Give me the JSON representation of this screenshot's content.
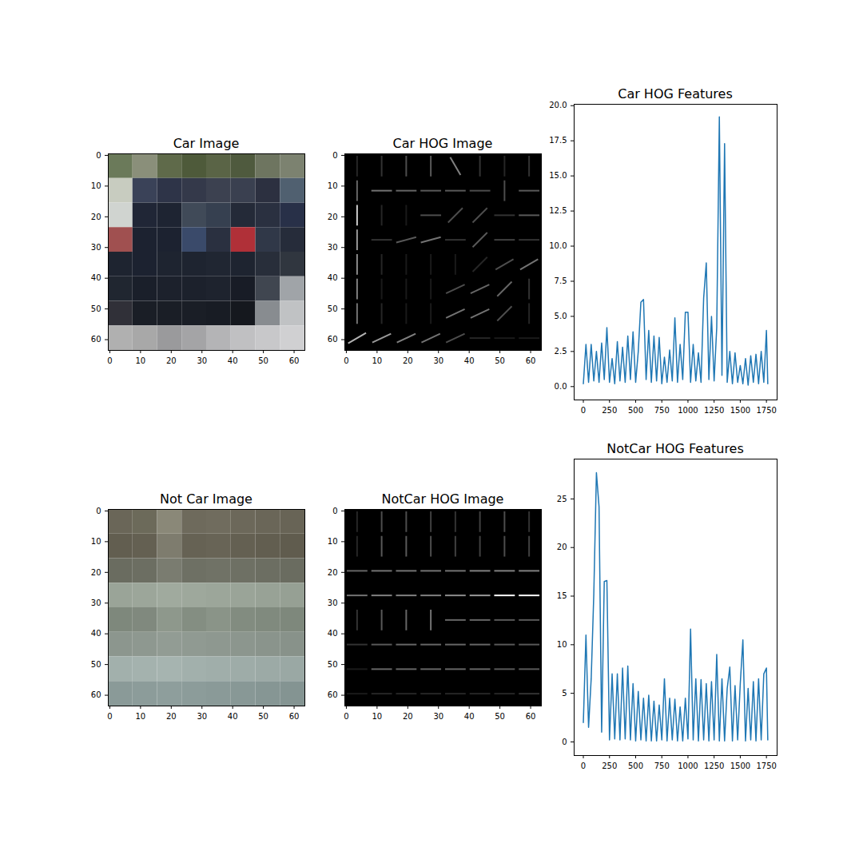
{
  "chart_data": [
    {
      "type": "image",
      "title": "Car Image",
      "xlim": [
        -0.5,
        63.5
      ],
      "ylim": [
        63.5,
        -0.5
      ],
      "xticks": [
        0,
        10,
        20,
        30,
        40,
        50,
        60
      ],
      "yticks": [
        0,
        10,
        20,
        30,
        40,
        50,
        60
      ],
      "cells": [
        [
          "#6b7a5a",
          "#8a8f7a",
          "#5f6a4a",
          "#4e5a3a",
          "#5a6446",
          "#4f5a3e",
          "#6e7560",
          "#7c8270"
        ],
        [
          "#c8ccc0",
          "#3a4258",
          "#2e3448",
          "#34394a",
          "#3c4150",
          "#3a4050",
          "#2c3040",
          "#506070"
        ],
        [
          "#d0d4d0",
          "#202636",
          "#1e2432",
          "#404a58",
          "#364050",
          "#242a38",
          "#2a3040",
          "#283048"
        ],
        [
          "#a05050",
          "#1c2230",
          "#1c2230",
          "#3a4a6a",
          "#2a3040",
          "#b03038",
          "#303848",
          "#262c3a"
        ],
        [
          "#1e2430",
          "#1c2230",
          "#1e2430",
          "#1e2430",
          "#202632",
          "#1e2430",
          "#282e3a",
          "#30363f"
        ],
        [
          "#202630",
          "#1a1f2a",
          "#1c212c",
          "#1c212c",
          "#1e232e",
          "#181c26",
          "#404650",
          "#a0a4a8"
        ],
        [
          "#303038",
          "#1a1e26",
          "#1a1e26",
          "#1a1e26",
          "#181c24",
          "#15181e",
          "#888c90",
          "#c0c2c4"
        ],
        [
          "#b0b0b0",
          "#a8a8a8",
          "#9a9a9c",
          "#a4a4a6",
          "#b4b4b6",
          "#c0c0c2",
          "#c8c8ca",
          "#d0d0d2"
        ]
      ]
    },
    {
      "type": "hog_image",
      "title": "Car HOG Image",
      "xlim": [
        -0.5,
        63.5
      ],
      "ylim": [
        63.5,
        -0.5
      ],
      "xticks": [
        0,
        10,
        20,
        30,
        40,
        50,
        60
      ],
      "yticks": [
        0,
        10,
        20,
        30,
        40,
        50,
        60
      ],
      "strength": [
        [
          0.15,
          0.2,
          0.3,
          0.35,
          0.5,
          0.2,
          0.15,
          0.2
        ],
        [
          0.4,
          0.45,
          0.4,
          0.35,
          0.35,
          0.3,
          0.3,
          0.35
        ],
        [
          0.8,
          0.15,
          0.1,
          0.3,
          0.3,
          0.3,
          0.2,
          0.35
        ],
        [
          0.6,
          0.2,
          0.35,
          0.45,
          0.2,
          0.35,
          0.25,
          0.2
        ],
        [
          0.55,
          0.15,
          0.1,
          0.1,
          0.1,
          0.15,
          0.3,
          0.45
        ],
        [
          0.5,
          0.1,
          0.1,
          0.1,
          0.3,
          0.4,
          0.4,
          0.2
        ],
        [
          0.45,
          0.15,
          0.1,
          0.1,
          0.45,
          0.45,
          0.3,
          0.15
        ],
        [
          0.7,
          0.6,
          0.5,
          0.45,
          0.3,
          0.15,
          0.1,
          0.1
        ]
      ],
      "angle": [
        [
          90,
          90,
          90,
          90,
          -60,
          90,
          90,
          90
        ],
        [
          90,
          0,
          0,
          0,
          0,
          0,
          90,
          0
        ],
        [
          90,
          90,
          90,
          0,
          45,
          45,
          0,
          0
        ],
        [
          90,
          0,
          15,
          15,
          0,
          45,
          0,
          0
        ],
        [
          90,
          90,
          90,
          90,
          90,
          45,
          30,
          30
        ],
        [
          90,
          90,
          90,
          90,
          25,
          25,
          45,
          90
        ],
        [
          90,
          90,
          90,
          90,
          25,
          25,
          45,
          90
        ],
        [
          30,
          25,
          25,
          25,
          25,
          0,
          0,
          0
        ]
      ]
    },
    {
      "type": "line",
      "title": "Car HOG Features",
      "color": "#1f77b4",
      "xlim": [
        -88,
        1852
      ],
      "ylim": [
        -0.95,
        20.1
      ],
      "xticks": [
        0,
        250,
        500,
        750,
        1000,
        1250,
        1500,
        1750
      ],
      "yticks": [
        {
          "value": 0,
          "label": "0.0"
        },
        {
          "value": 2.5,
          "label": "2.5"
        },
        {
          "value": 5,
          "label": "5.0"
        },
        {
          "value": 7.5,
          "label": "7.5"
        },
        {
          "value": 10,
          "label": "10.0"
        },
        {
          "value": 12.5,
          "label": "12.5"
        },
        {
          "value": 15,
          "label": "15.0"
        },
        {
          "value": 17.5,
          "label": "17.5"
        },
        {
          "value": 20,
          "label": "20.0"
        }
      ],
      "x": [
        0,
        25,
        50,
        75,
        100,
        125,
        150,
        175,
        200,
        225,
        250,
        275,
        300,
        325,
        350,
        375,
        400,
        425,
        450,
        475,
        500,
        525,
        550,
        575,
        600,
        625,
        650,
        675,
        700,
        725,
        750,
        775,
        800,
        825,
        850,
        875,
        900,
        925,
        950,
        975,
        1000,
        1025,
        1050,
        1075,
        1100,
        1125,
        1150,
        1175,
        1200,
        1225,
        1250,
        1275,
        1300,
        1325,
        1350,
        1375,
        1400,
        1425,
        1450,
        1475,
        1500,
        1525,
        1550,
        1575,
        1600,
        1625,
        1650,
        1675,
        1700,
        1725,
        1750,
        1763
      ],
      "values": [
        0.2,
        3.0,
        0.3,
        3.0,
        0.4,
        2.5,
        0.3,
        3.1,
        0.5,
        4.2,
        0.3,
        2.0,
        0.2,
        3.2,
        0.4,
        2.8,
        0.3,
        3.6,
        0.5,
        3.9,
        0.3,
        2.5,
        6.0,
        6.2,
        0.5,
        4.0,
        0.3,
        3.6,
        0.4,
        3.5,
        0.2,
        2.1,
        0.3,
        2.6,
        0.4,
        4.9,
        0.3,
        3.0,
        0.5,
        5.3,
        5.3,
        0.3,
        3.0,
        0.4,
        2.4,
        0.3,
        6.3,
        8.8,
        0.5,
        5.0,
        0.4,
        4.2,
        19.2,
        0.8,
        17.3,
        0.3,
        2.5,
        0.2,
        2.4,
        0.3,
        1.5,
        0.2,
        2.0,
        0.1,
        2.2,
        0.3,
        2.3,
        0.2,
        2.5,
        0.3,
        4.0,
        0.2
      ]
    },
    {
      "type": "image",
      "title": "Not Car Image",
      "xlim": [
        -0.5,
        63.5
      ],
      "ylim": [
        63.5,
        -0.5
      ],
      "xticks": [
        0,
        10,
        20,
        30,
        40,
        50,
        60
      ],
      "yticks": [
        0,
        10,
        20,
        30,
        40,
        50,
        60
      ],
      "cells": [
        [
          "#6a6658",
          "#6c6a5a",
          "#8a8878",
          "#6e6a5c",
          "#706c5e",
          "#6c685a",
          "#6a6658",
          "#686456"
        ],
        [
          "#625e50",
          "#646052",
          "#7e7c6e",
          "#666254",
          "#686456",
          "#646052",
          "#625e50",
          "#605c4e"
        ],
        [
          "#6a6c60",
          "#6c6e62",
          "#7a7c70",
          "#6e7064",
          "#707266",
          "#6e7064",
          "#6c6e62",
          "#6a6c60"
        ],
        [
          "#9aa498",
          "#9ca69a",
          "#a0aa9e",
          "#9ea89c",
          "#9ca69a",
          "#9aa498",
          "#98a296",
          "#96a094"
        ],
        [
          "#7e887c",
          "#80897e",
          "#8e988c",
          "#848e82",
          "#8a9488",
          "#828c80",
          "#808a7e",
          "#7e887c"
        ],
        [
          "#8c968e",
          "#8e9890",
          "#929c94",
          "#909a92",
          "#8e9890",
          "#8c968e",
          "#8a948c",
          "#88928a"
        ],
        [
          "#a2b0ac",
          "#a4b2ae",
          "#a6b4b0",
          "#a2b0ac",
          "#a0aeaa",
          "#9eaca8",
          "#9caaa6",
          "#9aa8a4"
        ],
        [
          "#8a9a98",
          "#8c9c9a",
          "#8e9e9c",
          "#8c9c9a",
          "#8a9a98",
          "#889896",
          "#869694",
          "#849492"
        ]
      ]
    },
    {
      "type": "hog_image",
      "title": "NotCar HOG Image",
      "xlim": [
        -0.5,
        63.5
      ],
      "ylim": [
        63.5,
        -0.5
      ],
      "xticks": [
        0,
        10,
        20,
        30,
        40,
        50,
        60
      ],
      "yticks": [
        0,
        10,
        20,
        30,
        40,
        50,
        60
      ],
      "strength": [
        [
          0.15,
          0.3,
          0.3,
          0.25,
          0.2,
          0.25,
          0.3,
          0.2
        ],
        [
          0.15,
          0.35,
          0.35,
          0.3,
          0.25,
          0.25,
          0.3,
          0.25
        ],
        [
          0.4,
          0.45,
          0.45,
          0.45,
          0.45,
          0.5,
          0.5,
          0.5
        ],
        [
          0.45,
          0.5,
          0.5,
          0.5,
          0.55,
          0.6,
          1.0,
          1.0
        ],
        [
          0.2,
          0.35,
          0.4,
          0.45,
          0.4,
          0.4,
          0.35,
          0.35
        ],
        [
          0.2,
          0.35,
          0.4,
          0.4,
          0.4,
          0.4,
          0.35,
          0.35
        ],
        [
          0.1,
          0.4,
          0.4,
          0.4,
          0.4,
          0.4,
          0.35,
          0.35
        ],
        [
          0.1,
          0.15,
          0.15,
          0.15,
          0.15,
          0.15,
          0.15,
          0.2
        ]
      ],
      "angle": [
        [
          90,
          90,
          90,
          90,
          90,
          90,
          90,
          90
        ],
        [
          90,
          90,
          90,
          90,
          90,
          90,
          90,
          90
        ],
        [
          0,
          0,
          0,
          0,
          0,
          0,
          0,
          0
        ],
        [
          0,
          0,
          0,
          0,
          0,
          0,
          0,
          0
        ],
        [
          90,
          90,
          90,
          90,
          0,
          0,
          0,
          0
        ],
        [
          0,
          0,
          0,
          0,
          0,
          0,
          0,
          0
        ],
        [
          0,
          0,
          0,
          0,
          0,
          0,
          0,
          0
        ],
        [
          0,
          0,
          0,
          0,
          0,
          0,
          0,
          0
        ]
      ]
    },
    {
      "type": "line",
      "title": "NotCar HOG Features",
      "color": "#1f77b4",
      "xlim": [
        -88,
        1852
      ],
      "ylim": [
        -1.4,
        29.1
      ],
      "xticks": [
        0,
        250,
        500,
        750,
        1000,
        1250,
        1500,
        1750
      ],
      "yticks": [
        0,
        5,
        10,
        15,
        20,
        25
      ],
      "x": [
        0,
        25,
        50,
        75,
        100,
        125,
        150,
        175,
        200,
        225,
        250,
        275,
        300,
        325,
        350,
        375,
        400,
        425,
        450,
        475,
        500,
        525,
        550,
        575,
        600,
        625,
        650,
        675,
        700,
        725,
        750,
        775,
        800,
        825,
        850,
        875,
        900,
        925,
        950,
        975,
        1000,
        1025,
        1050,
        1075,
        1100,
        1125,
        1150,
        1175,
        1200,
        1225,
        1250,
        1275,
        1300,
        1325,
        1350,
        1375,
        1400,
        1425,
        1450,
        1475,
        1500,
        1525,
        1550,
        1575,
        1600,
        1625,
        1650,
        1675,
        1700,
        1725,
        1750,
        1763
      ],
      "values": [
        2.0,
        11.0,
        1.5,
        6.5,
        15.2,
        27.7,
        24.2,
        1.0,
        16.5,
        16.6,
        0.2,
        7.0,
        0.3,
        7.0,
        0.2,
        7.6,
        0.3,
        7.8,
        0.2,
        6.0,
        0.1,
        5.2,
        0.2,
        4.5,
        0.1,
        4.8,
        0.1,
        4.2,
        0.1,
        3.8,
        0.2,
        6.5,
        0.1,
        4.5,
        0.2,
        4.4,
        0.1,
        3.6,
        0.1,
        4.5,
        0.3,
        11.6,
        0.2,
        6.5,
        0.1,
        6.4,
        0.2,
        6.0,
        0.1,
        6.2,
        0.2,
        9.0,
        0.1,
        6.5,
        0.1,
        5.5,
        7.7,
        0.1,
        5.8,
        0.2,
        6.0,
        10.5,
        0.1,
        5.5,
        0.2,
        6.2,
        0.1,
        6.5,
        0.2,
        7.0,
        7.6,
        0.2
      ]
    }
  ]
}
